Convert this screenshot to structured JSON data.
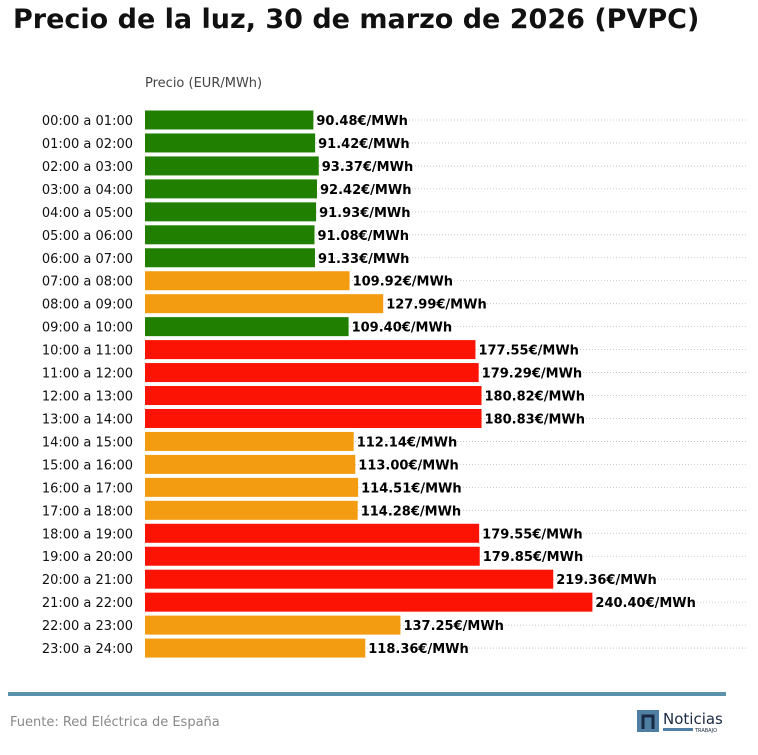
{
  "chart_data": {
    "type": "bar",
    "orientation": "horizontal",
    "title": "Precio de la luz, 30 de marzo de 2026 (PVPC)",
    "xlabel": "Precio (EUR/MWh)",
    "ylabel": "",
    "xlim": [
      0,
      324
    ],
    "grid": "horizontal dotted",
    "value_suffix": "€/MWh",
    "categories": [
      "00:00 a 01:00",
      "01:00 a 02:00",
      "02:00 a 03:00",
      "03:00 a 04:00",
      "04:00 a 05:00",
      "05:00 a 06:00",
      "06:00 a 07:00",
      "07:00 a 08:00",
      "08:00 a 09:00",
      "09:00 a 10:00",
      "10:00 a 11:00",
      "11:00 a 12:00",
      "12:00 a 13:00",
      "13:00 a 14:00",
      "14:00 a 15:00",
      "15:00 a 16:00",
      "16:00 a 17:00",
      "17:00 a 18:00",
      "18:00 a 19:00",
      "19:00 a 20:00",
      "20:00 a 21:00",
      "21:00 a 22:00",
      "22:00 a 23:00",
      "23:00 a 24:00"
    ],
    "values": [
      90.48,
      91.42,
      93.37,
      92.42,
      91.93,
      91.08,
      91.33,
      109.92,
      127.99,
      109.4,
      177.55,
      179.29,
      180.82,
      180.83,
      112.14,
      113.0,
      114.51,
      114.28,
      179.55,
      179.85,
      219.36,
      240.4,
      137.25,
      118.36
    ],
    "levels": [
      "low",
      "low",
      "low",
      "low",
      "low",
      "low",
      "low",
      "mid",
      "mid",
      "low",
      "high",
      "high",
      "high",
      "high",
      "mid",
      "mid",
      "mid",
      "mid",
      "high",
      "high",
      "high",
      "high",
      "mid",
      "mid"
    ],
    "colors": {
      "low": "#217f00",
      "mid": "#f39c12",
      "high": "#fc1303"
    }
  },
  "source": "Fuente: Red Eléctrica de España",
  "logo": {
    "name": "Noticias",
    "sub": "TRABAJO"
  }
}
